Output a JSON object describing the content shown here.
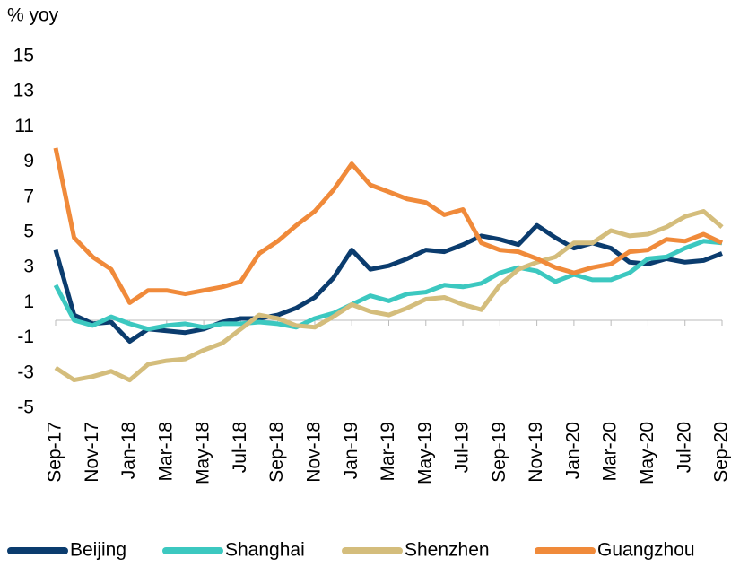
{
  "chart_data": {
    "type": "line",
    "title": "% yoy",
    "categories": [
      "Sep-17",
      null,
      "Nov-17",
      null,
      "Jan-18",
      null,
      "Mar-18",
      null,
      "May-18",
      null,
      "Jul-18",
      null,
      "Sep-18",
      null,
      "Nov-18",
      null,
      "Jan-19",
      null,
      "Mar-19",
      null,
      "May-19",
      null,
      "Jul-19",
      null,
      "Sep-19",
      null,
      "Nov-19",
      null,
      "Jan-20",
      null,
      "Mar-20",
      null,
      "May-20",
      null,
      "Jul-20",
      null,
      "Sep-20"
    ],
    "series": [
      {
        "name": "Beijing",
        "color": "#0b3c6e",
        "values": [
          4.0,
          0.3,
          -0.2,
          -0.1,
          -1.2,
          -0.5,
          -0.6,
          -0.7,
          -0.5,
          -0.1,
          0.1,
          0.1,
          0.3,
          0.7,
          1.3,
          2.4,
          4.0,
          2.9,
          3.1,
          3.5,
          4.0,
          3.9,
          4.3,
          4.8,
          4.6,
          4.3,
          5.4,
          4.7,
          4.1,
          4.4,
          4.1,
          3.3,
          3.2,
          3.5,
          3.3,
          3.4,
          3.8
        ]
      },
      {
        "name": "Shanghai",
        "color": "#3cc8c0",
        "values": [
          2.0,
          0.0,
          -0.3,
          0.2,
          -0.2,
          -0.5,
          -0.3,
          -0.2,
          -0.4,
          -0.2,
          -0.2,
          -0.1,
          -0.2,
          -0.4,
          0.1,
          0.4,
          0.9,
          1.4,
          1.1,
          1.5,
          1.6,
          2.0,
          1.9,
          2.1,
          2.7,
          3.0,
          2.8,
          2.2,
          2.6,
          2.3,
          2.3,
          2.7,
          3.5,
          3.6,
          4.1,
          4.5,
          4.4
        ]
      },
      {
        "name": "Shenzhen",
        "color": "#d4bd7c",
        "values": [
          -2.7,
          -3.4,
          -3.2,
          -2.9,
          -3.4,
          -2.5,
          -2.3,
          -2.2,
          -1.7,
          -1.3,
          -0.5,
          0.3,
          0.1,
          -0.3,
          -0.4,
          0.2,
          0.9,
          0.5,
          0.3,
          0.7,
          1.2,
          1.3,
          0.9,
          0.6,
          2.0,
          2.9,
          3.3,
          3.6,
          4.4,
          4.4,
          5.1,
          4.8,
          4.9,
          5.3,
          5.9,
          6.2,
          5.3
        ]
      },
      {
        "name": "Guangzhou",
        "color": "#f08a3a",
        "values": [
          9.8,
          4.7,
          3.6,
          2.9,
          1.0,
          1.7,
          1.7,
          1.5,
          1.7,
          1.9,
          2.2,
          3.8,
          4.5,
          5.4,
          6.2,
          7.4,
          8.9,
          7.7,
          7.3,
          6.9,
          6.7,
          6.0,
          6.3,
          4.4,
          4.0,
          3.9,
          3.5,
          3.0,
          2.7,
          3.0,
          3.2,
          3.9,
          4.0,
          4.6,
          4.5,
          4.9,
          4.4
        ]
      }
    ],
    "ylim": [
      -5,
      15
    ],
    "yticks": [
      -5,
      -3,
      -1,
      1,
      3,
      5,
      7,
      9,
      11,
      13,
      15
    ],
    "grid": false
  }
}
